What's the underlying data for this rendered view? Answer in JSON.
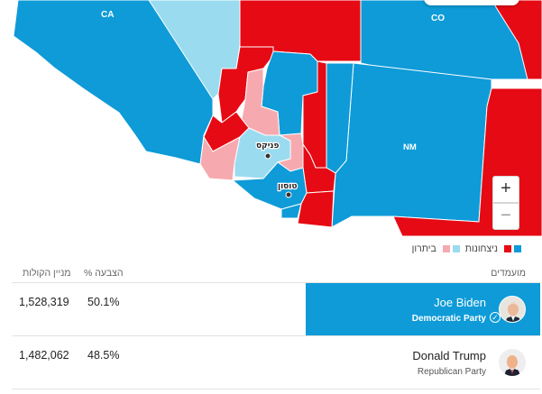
{
  "colors": {
    "dem_strong": "#0e9bd8",
    "dem_light": "#9adbef",
    "rep_strong": "#e60a14",
    "rep_light": "#f6aab0"
  },
  "map": {
    "state_labels": {
      "ca": "CA",
      "co": "CO",
      "nm": "NM"
    },
    "city_labels": {
      "phoenix": "פניקס",
      "tucson": "טוסון"
    },
    "zoom_in": "+",
    "zoom_out": "−"
  },
  "legend": {
    "wins_label": "ניצחונות",
    "lead_label": "ביתרון"
  },
  "table": {
    "headers": {
      "candidates": "מועמדים",
      "vote_pct": "% הצבעה",
      "vote_count": "מניין הקולות"
    },
    "rows": [
      {
        "name": "Joe Biden",
        "party": "Democratic Party",
        "pct": "50.1%",
        "votes": "1,528,319",
        "winner": true,
        "avatar": "biden-avatar"
      },
      {
        "name": "Donald Trump",
        "party": "Republican Party",
        "pct": "48.5%",
        "votes": "1,482,062",
        "winner": false,
        "avatar": "trump-avatar"
      }
    ]
  }
}
